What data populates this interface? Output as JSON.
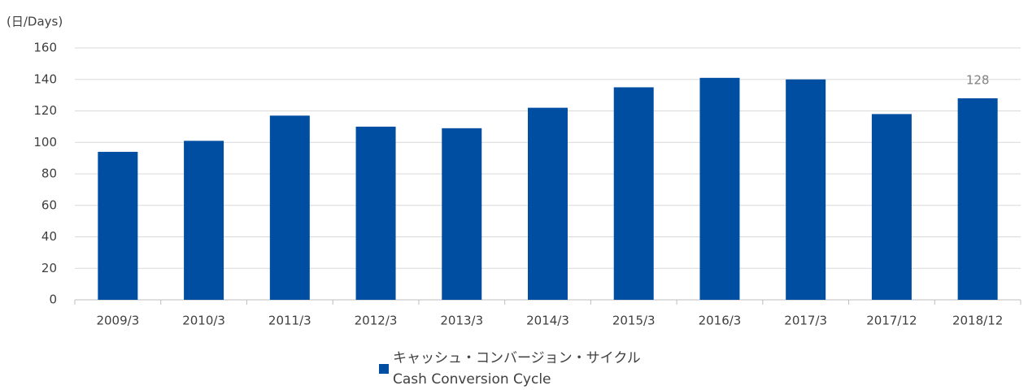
{
  "chart_data": {
    "type": "bar",
    "y_axis_label": "(日/Days)",
    "categories": [
      "2009/3",
      "2010/3",
      "2011/3",
      "2012/3",
      "2013/3",
      "2014/3",
      "2015/3",
      "2016/3",
      "2017/3",
      "2017/12",
      "2018/12"
    ],
    "series": [
      {
        "name": "キャッシュ・コンバージョン・サイクル\nCash Conversion Cycle",
        "color": "#004ea2",
        "values": [
          94,
          101,
          117,
          110,
          109,
          122,
          135,
          141,
          140,
          118,
          128
        ],
        "value_labels": [
          null,
          null,
          null,
          null,
          null,
          null,
          null,
          null,
          null,
          null,
          "128"
        ]
      }
    ],
    "ylim": [
      0,
      160
    ],
    "yticks": [
      0,
      20,
      40,
      60,
      80,
      100,
      120,
      140,
      160
    ],
    "grid": true,
    "legend": "bottom"
  }
}
